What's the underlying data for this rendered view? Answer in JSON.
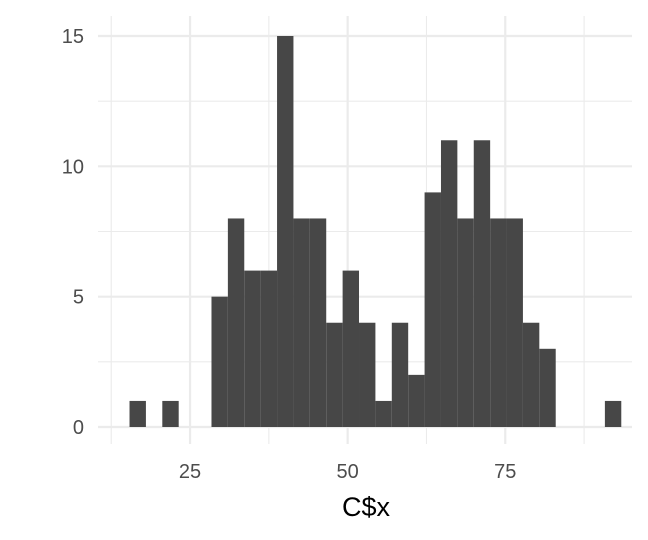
{
  "chart_data": {
    "type": "bar",
    "title": "",
    "xlabel": "C$x",
    "ylabel": "",
    "xlim": [
      10.4,
      95.1
    ],
    "ylim": [
      0,
      15
    ],
    "x_ticks": [
      25,
      50,
      75
    ],
    "y_ticks": [
      0,
      5,
      10,
      15
    ],
    "grid": true,
    "bar_color": "#474747",
    "bin_width": 2.6,
    "x": [
      16.7,
      19.3,
      21.9,
      24.5,
      27.1,
      29.7,
      32.3,
      34.9,
      37.5,
      40.1,
      42.7,
      45.3,
      47.9,
      50.5,
      53.1,
      55.7,
      58.3,
      60.9,
      63.5,
      66.1,
      68.7,
      71.3,
      73.9,
      76.5,
      79.1,
      81.7,
      84.3,
      86.9,
      89.5,
      92.1
    ],
    "values": [
      1,
      0,
      1,
      0,
      0,
      5,
      8,
      6,
      6,
      15,
      8,
      8,
      4,
      6,
      4,
      1,
      4,
      2,
      9,
      11,
      8,
      11,
      8,
      8,
      4,
      3,
      0,
      0,
      0,
      1
    ]
  }
}
